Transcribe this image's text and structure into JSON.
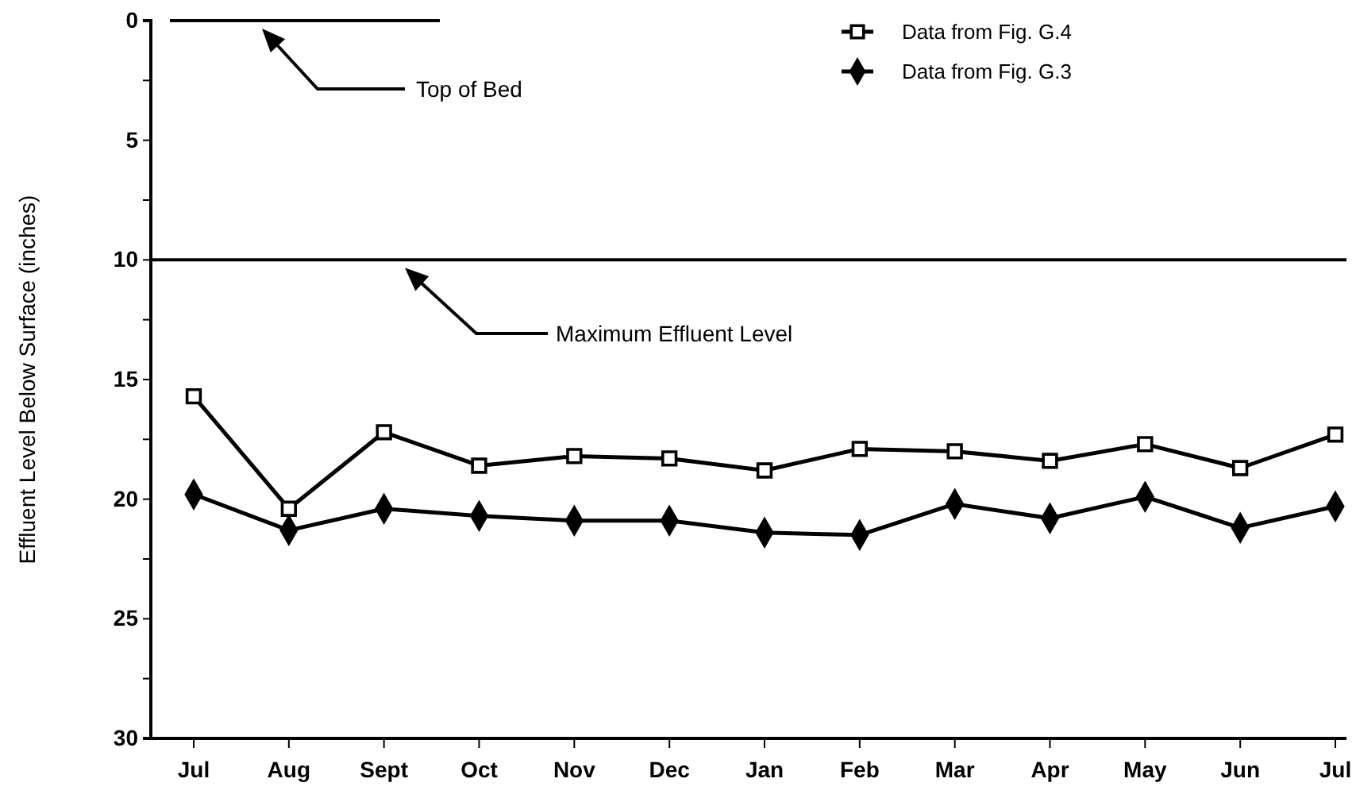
{
  "chart_data": {
    "type": "line",
    "ylabel": "Effluent Level Below Surface (inches)",
    "categories": [
      "Jul",
      "Aug",
      "Sept",
      "Oct",
      "Nov",
      "Dec",
      "Jan",
      "Feb",
      "Mar",
      "Apr",
      "May",
      "Jun",
      "Jul"
    ],
    "series": [
      {
        "name": "Data from Fig. G.4",
        "color": "#000000",
        "marker": "square",
        "values": [
          15.7,
          20.4,
          17.2,
          18.6,
          18.2,
          18.3,
          18.8,
          17.9,
          18.0,
          18.4,
          17.7,
          18.7,
          17.3
        ]
      },
      {
        "name": "Data from Fig. G.3",
        "color": "#000000",
        "marker": "diamond",
        "values": [
          19.8,
          21.3,
          20.4,
          20.7,
          20.9,
          20.9,
          21.4,
          21.5,
          20.2,
          20.8,
          19.9,
          21.2,
          20.3
        ]
      }
    ],
    "ylim": [
      30,
      0
    ],
    "yticks": [
      0,
      {
        "value": 2.5,
        "label": null
      },
      5,
      {
        "value": 7.5,
        "label": null
      },
      10,
      {
        "value": 12.5,
        "label": null
      },
      15,
      {
        "value": 17.5,
        "label": null
      },
      20,
      {
        "value": 22.5,
        "label": null
      },
      25,
      {
        "value": 27.5,
        "label": null
      },
      30
    ],
    "ref_lines": [
      {
        "axis": "y",
        "value": 0,
        "label": "Top of Bed",
        "color": "#000000"
      },
      {
        "axis": "y",
        "value": 10,
        "label": "Maximum Effluent Level",
        "color": "#000000"
      }
    ],
    "legend": "top right",
    "grid": false,
    "line_style": "solid"
  }
}
